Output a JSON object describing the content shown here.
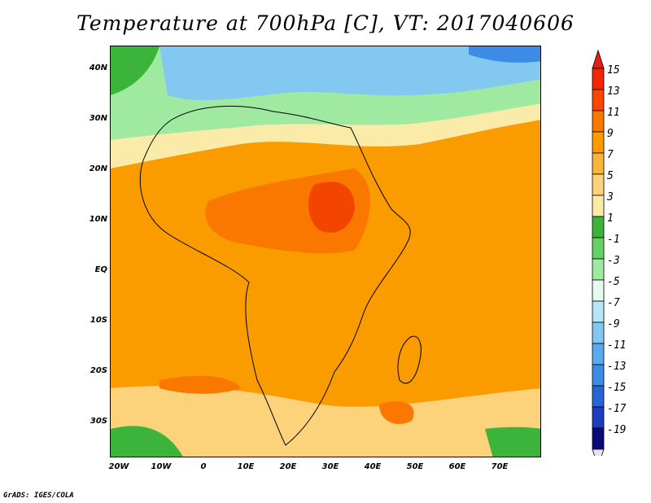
{
  "title": "Temperature at 700hPa [C], VT: 2017040606",
  "credit": "GrADS: IGES/COLA",
  "map": {
    "lat_labels": [
      "40N",
      "30N",
      "20N",
      "10N",
      "EQ",
      "10S",
      "20S",
      "30S"
    ],
    "lon_labels": [
      "20W",
      "10W",
      "0",
      "10E",
      "20E",
      "30E",
      "40E",
      "50E",
      "60E",
      "70E"
    ],
    "colorbar": {
      "labels": [
        "15",
        "13",
        "11",
        "9",
        "7",
        "5",
        "3",
        "1",
        "-1",
        "-3",
        "-5",
        "-7",
        "-9",
        "-11",
        "-13",
        "-15",
        "-17",
        "-19"
      ],
      "colors": [
        "#f02800",
        "#fa4600",
        "#fa7800",
        "#fa9b00",
        "#f9b43c",
        "#fcd27a",
        "#fbeba8",
        "#3cb43c",
        "#64d264",
        "#a0e9a0",
        "#e6f8f0",
        "#b4e6fa",
        "#82c8f0",
        "#5aaaf0",
        "#3c8ce6",
        "#2864d2",
        "#1e3cbe",
        "#0a0a78"
      ],
      "over_color": "#e61e14",
      "under_color": "#e6e1fa"
    }
  }
}
